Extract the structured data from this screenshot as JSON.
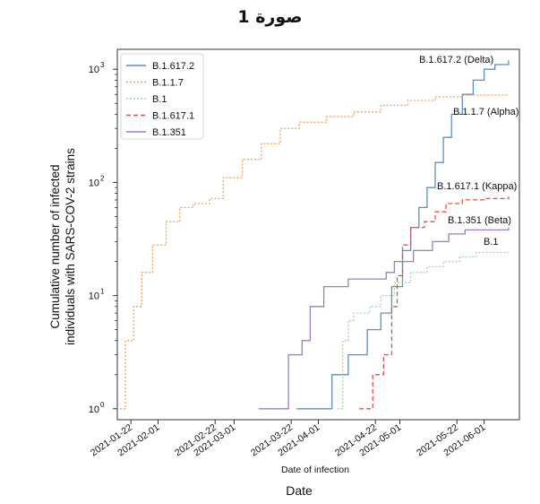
{
  "figure": {
    "title": "صورة 1",
    "date_caption": "Date"
  },
  "chart_data": {
    "type": "line",
    "title": "",
    "xlabel": "Date of infection",
    "ylabel": [
      "Cumulative number of infected",
      "individuals with SARS-COV-2 strains"
    ],
    "yscale": "log",
    "ylim": [
      0.8,
      1500
    ],
    "xlim": [
      "2021-01-17",
      "2021-06-14"
    ],
    "x_ticks": [
      "2021-01-22",
      "2021-02-01",
      "2021-02-22",
      "2021-03-01",
      "2021-03-22",
      "2021-04-01",
      "2021-04-22",
      "2021-05-01",
      "2021-05-22",
      "2021-06-01"
    ],
    "y_ticks": [
      {
        "value": 1,
        "label": "10",
        "exp": "0"
      },
      {
        "value": 10,
        "label": "10",
        "exp": "1"
      },
      {
        "value": 100,
        "label": "10",
        "exp": "2"
      },
      {
        "value": 1000,
        "label": "10",
        "exp": "3"
      }
    ],
    "legend_position": "top-left",
    "series": [
      {
        "name": "B.1.617.2",
        "color": "#5b8fc7",
        "dash": "",
        "annotation": "B.1.617.2 (Delta)",
        "points": [
          [
            "2021-03-24",
            1
          ],
          [
            "2021-04-06",
            1
          ],
          [
            "2021-04-06",
            2
          ],
          [
            "2021-04-12",
            2
          ],
          [
            "2021-04-12",
            3
          ],
          [
            "2021-04-19",
            3
          ],
          [
            "2021-04-19",
            5
          ],
          [
            "2021-04-24",
            7
          ],
          [
            "2021-04-28",
            12
          ],
          [
            "2021-05-02",
            25
          ],
          [
            "2021-05-05",
            40
          ],
          [
            "2021-05-08",
            60
          ],
          [
            "2021-05-11",
            90
          ],
          [
            "2021-05-14",
            150
          ],
          [
            "2021-05-17",
            250
          ],
          [
            "2021-05-20",
            400
          ],
          [
            "2021-05-24",
            600
          ],
          [
            "2021-05-28",
            800
          ],
          [
            "2021-06-01",
            1000
          ],
          [
            "2021-06-05",
            1100
          ],
          [
            "2021-06-10",
            1200
          ]
        ]
      },
      {
        "name": "B.1.1.7",
        "color": "#f0a060",
        "dash": "2,2",
        "annotation": "B.1.1.7 (Alpha)",
        "points": [
          [
            "2021-01-18",
            1
          ],
          [
            "2021-01-20",
            4
          ],
          [
            "2021-01-23",
            8
          ],
          [
            "2021-01-26",
            16
          ],
          [
            "2021-01-30",
            28
          ],
          [
            "2021-02-04",
            45
          ],
          [
            "2021-02-09",
            60
          ],
          [
            "2021-02-14",
            65
          ],
          [
            "2021-02-20",
            72
          ],
          [
            "2021-02-25",
            110
          ],
          [
            "2021-03-04",
            160
          ],
          [
            "2021-03-11",
            220
          ],
          [
            "2021-03-18",
            300
          ],
          [
            "2021-03-25",
            340
          ],
          [
            "2021-04-04",
            380
          ],
          [
            "2021-04-14",
            420
          ],
          [
            "2021-04-24",
            480
          ],
          [
            "2021-05-04",
            530
          ],
          [
            "2021-05-14",
            570
          ],
          [
            "2021-05-24",
            590
          ],
          [
            "2021-06-10",
            600
          ]
        ]
      },
      {
        "name": "B.1",
        "color": "#a9d3a9",
        "dash": "2,2",
        "annotation": "B.1",
        "points": [
          [
            "2021-04-08",
            1
          ],
          [
            "2021-04-10",
            4
          ],
          [
            "2021-04-12",
            6
          ],
          [
            "2021-04-14",
            7
          ],
          [
            "2021-04-19",
            7
          ],
          [
            "2021-04-20",
            8
          ],
          [
            "2021-04-23",
            8
          ],
          [
            "2021-04-24",
            10
          ],
          [
            "2021-04-29",
            13
          ],
          [
            "2021-05-05",
            16
          ],
          [
            "2021-05-11",
            18
          ],
          [
            "2021-05-17",
            20
          ],
          [
            "2021-05-23",
            22
          ],
          [
            "2021-05-29",
            24
          ],
          [
            "2021-06-10",
            24
          ]
        ]
      },
      {
        "name": "B.1.617.1",
        "color": "#e0524a",
        "dash": "5,3",
        "annotation": "B.1.617.1 (Kappa)",
        "points": [
          [
            "2021-04-16",
            1
          ],
          [
            "2021-04-21",
            1
          ],
          [
            "2021-04-21",
            2
          ],
          [
            "2021-04-25",
            3
          ],
          [
            "2021-04-28",
            8
          ],
          [
            "2021-04-30",
            15
          ],
          [
            "2021-05-02",
            28
          ],
          [
            "2021-05-05",
            40
          ],
          [
            "2021-05-10",
            45
          ],
          [
            "2021-05-14",
            55
          ],
          [
            "2021-05-18",
            65
          ],
          [
            "2021-05-24",
            70
          ],
          [
            "2021-06-01",
            72
          ],
          [
            "2021-06-10",
            75
          ]
        ]
      },
      {
        "name": "B.1.351",
        "color": "#9b7fc0",
        "dash": "",
        "annotation": "B.1.351 (Beta)",
        "points": [
          [
            "2021-03-10",
            1
          ],
          [
            "2021-03-21",
            1
          ],
          [
            "2021-03-21",
            3
          ],
          [
            "2021-03-26",
            3
          ],
          [
            "2021-03-26",
            4
          ],
          [
            "2021-03-29",
            8
          ],
          [
            "2021-04-03",
            12
          ],
          [
            "2021-04-10",
            12
          ],
          [
            "2021-04-12",
            14
          ],
          [
            "2021-04-26",
            14
          ],
          [
            "2021-04-26",
            16
          ],
          [
            "2021-04-29",
            20
          ],
          [
            "2021-05-06",
            25
          ],
          [
            "2021-05-13",
            30
          ],
          [
            "2021-05-19",
            35
          ],
          [
            "2021-05-25",
            38
          ],
          [
            "2021-06-10",
            40
          ]
        ]
      }
    ]
  }
}
